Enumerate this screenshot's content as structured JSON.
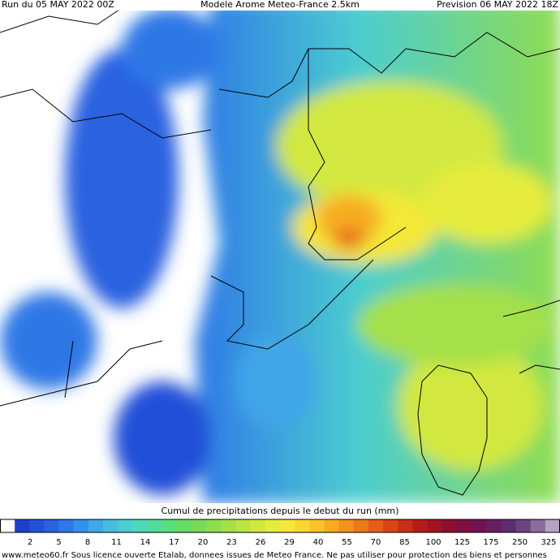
{
  "header": {
    "run": "Run du 05 MAY 2022 00Z",
    "model": "Modele Arome Meteo-France 2.5km",
    "forecast": "Prevision 06 MAY 2022 18Z"
  },
  "legend": {
    "title": "Cumul de precipitations depuis le debut du run (mm)",
    "ticks": [
      2,
      5,
      8,
      11,
      14,
      17,
      20,
      23,
      26,
      29,
      40,
      55,
      70,
      85,
      100,
      125,
      175,
      250,
      325
    ],
    "colors": [
      "#ffffff",
      "#1e3fc8",
      "#2450d8",
      "#2b62e0",
      "#2e78e6",
      "#3590ea",
      "#40a6e8",
      "#48bce0",
      "#4ccdd0",
      "#4fd8b8",
      "#52dc9c",
      "#5ade80",
      "#66dc66",
      "#7ad85a",
      "#8edc50",
      "#a4e048",
      "#bce444",
      "#d2e840",
      "#e6ec3c",
      "#f4e838",
      "#f8d830",
      "#f8c428",
      "#f6ac22",
      "#f2921e",
      "#ec781c",
      "#e45e1a",
      "#d84418",
      "#c82e18",
      "#b41c1c",
      "#a01424",
      "#8c1030",
      "#7c1040",
      "#6e1450",
      "#662060",
      "#5e2c70",
      "#6a4480",
      "#8a6c9c",
      "#b4a4c0"
    ]
  },
  "footer": "www.meteo60.fr Sous licence ouverte Etalab, donnees issues de Meteo France. Ne pas utiliser pour protection des biens et personnes"
}
